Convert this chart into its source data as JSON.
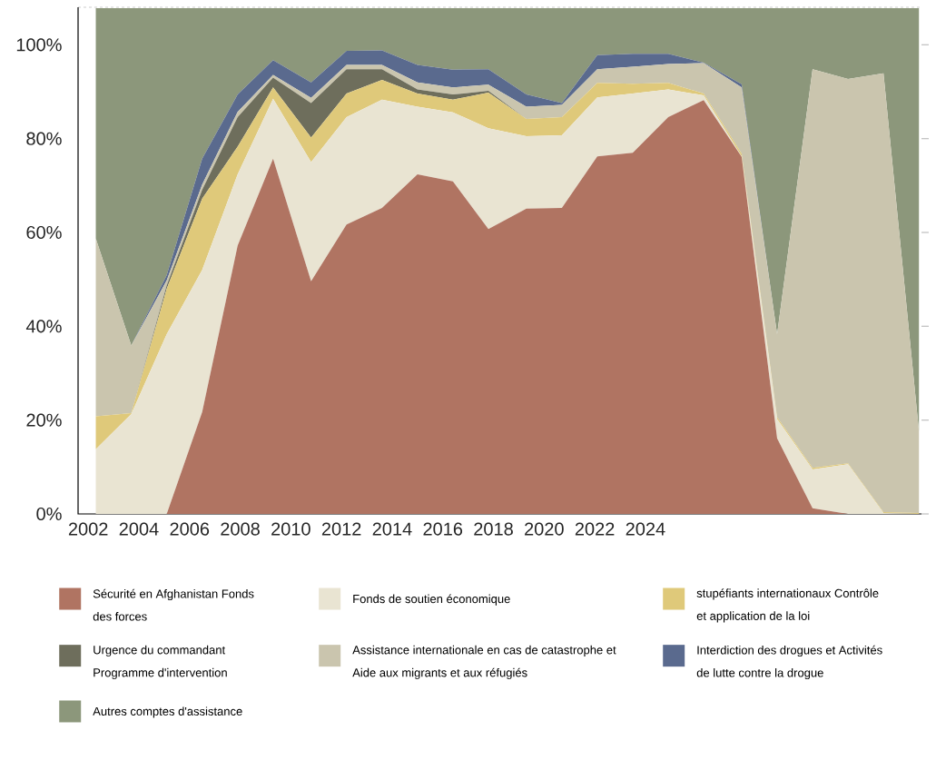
{
  "chart_data": {
    "type": "area",
    "stacked": true,
    "legend": "bottom",
    "x": [
      2002.3,
      2003.7,
      2005.1,
      2006.5,
      2007.9,
      2009.3,
      2010.8,
      2012.2,
      2013.6,
      2015.0,
      2016.4,
      2017.8,
      2019.3,
      2020.7,
      2022.1,
      2023.5,
      2024.9,
      2026.3,
      2027.8,
      2029.2,
      2030.6,
      2032.0,
      2033.4,
      2034.8
    ],
    "xlim": [
      2001.6,
      2034.9
    ],
    "xticks": [
      2002,
      2004,
      2006,
      2008,
      2010,
      2012,
      2014,
      2016,
      2018,
      2020,
      2022,
      2024
    ],
    "ylim": [
      0,
      108
    ],
    "yticks": [
      {
        "value": 0,
        "label": "0%"
      },
      {
        "value": 20,
        "label": "20%"
      },
      {
        "value": 40,
        "label": "40%"
      },
      {
        "value": 60,
        "label": "60%"
      },
      {
        "value": 80,
        "label": "80%"
      },
      {
        "value": 100,
        "label": "100%"
      }
    ],
    "series": [
      {
        "name": "Sécurité en Afghanistan Fonds des forces",
        "color": "#b07462",
        "values": [
          0,
          0,
          0,
          21.7,
          57.2,
          75.7,
          49.6,
          61.7,
          65.2,
          72.4,
          70.9,
          60.7,
          65.1,
          65.2,
          76.2,
          77.0,
          84.6,
          88.2,
          76.1,
          16.1,
          1.2,
          0,
          0,
          0
        ]
      },
      {
        "name": "Fonds de soutien économique",
        "color": "#e9e4d2",
        "values": [
          13.8,
          21.3,
          38.3,
          30.3,
          15.2,
          12.8,
          25.4,
          22.9,
          23.1,
          14.4,
          14.7,
          21.5,
          15.4,
          15.5,
          12.6,
          12.6,
          5.9,
          1.0,
          0.1,
          4.1,
          8.3,
          10.6,
          0.2,
          0
        ]
      },
      {
        "name": "stupéfiants internationaux Contrôle et application de la loi",
        "color": "#dfc97a",
        "values": [
          7.0,
          0.2,
          9.7,
          15.2,
          5.9,
          2.4,
          5.2,
          5.0,
          4.2,
          2.8,
          2.7,
          7.6,
          3.7,
          3.9,
          3.1,
          2.1,
          1.4,
          0.4,
          0.6,
          0.4,
          0.3,
          0.2,
          0.2,
          0.2
        ]
      },
      {
        "name": "Urgence du commandant Programme d'intervention",
        "color": "#6e6e5c",
        "values": [
          0,
          0,
          0.7,
          1.9,
          6.3,
          2.1,
          7.4,
          5.2,
          2.3,
          0.9,
          1.1,
          0.4,
          0,
          0,
          0,
          0,
          0,
          0,
          0,
          0,
          0,
          0,
          0,
          0
        ]
      },
      {
        "name": "Assistance internationale en cas de catastrophe et Aide aux migrants et aux réfugiés",
        "color": "#cac5ae",
        "values": [
          37.9,
          14.4,
          1.1,
          1.1,
          1.1,
          0.6,
          1.1,
          0.9,
          0.9,
          1.5,
          1.5,
          1.3,
          2.6,
          2.6,
          2.9,
          3.6,
          4.0,
          6.5,
          14.1,
          17.7,
          85.0,
          81.9,
          93.5,
          17.4
        ]
      },
      {
        "name": "Interdiction des drogues et Activités de lutte contre la drogue",
        "color": "#5a6a8e",
        "values": [
          0,
          0,
          1.1,
          5.5,
          3.7,
          3.1,
          3.3,
          3.0,
          3.1,
          3.7,
          3.8,
          3.3,
          2.6,
          0.4,
          3.0,
          2.8,
          2.2,
          0.1,
          0.7,
          0,
          0,
          0,
          0,
          0
        ]
      },
      {
        "name": "Autres comptes d'assistance",
        "color": "#8c977b",
        "values": [
          49.1,
          71.9,
          56.9,
          32.1,
          18.4,
          11.1,
          15.8,
          9.1,
          9.0,
          12.1,
          13.1,
          13.0,
          18.4,
          20.2,
          10.0,
          9.7,
          9.7,
          11.6,
          16.2,
          69.5,
          13.0,
          15.1,
          13.9,
          90.2
        ]
      }
    ]
  }
}
